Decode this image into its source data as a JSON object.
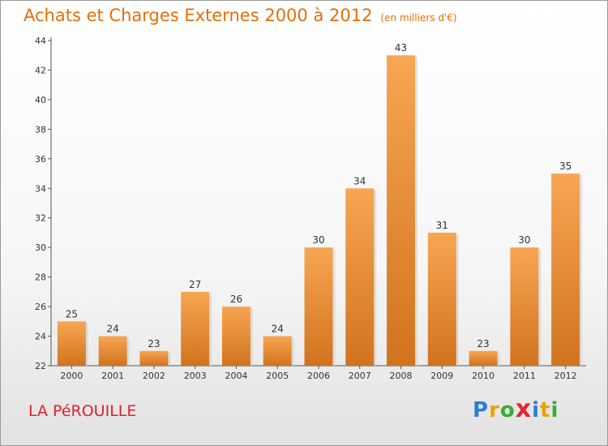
{
  "header": {
    "title": "Achats et Charges Externes 2000 à 2012",
    "subtitle": "(en milliers d'€)"
  },
  "footer": {
    "commune": "LA PéROUILLE",
    "logo_text": "Proxiti"
  },
  "colors": {
    "bar_light": "#f7a652",
    "bar_dark": "#d2731e",
    "title": "#e36f0b",
    "commune": "#e0202c"
  },
  "chart_data": {
    "type": "bar",
    "title": "Achats et Charges Externes 2000 à 2012",
    "subtitle": "(en milliers d'€)",
    "categories": [
      "2000",
      "2001",
      "2002",
      "2003",
      "2004",
      "2005",
      "2006",
      "2007",
      "2008",
      "2009",
      "2010",
      "2011",
      "2012"
    ],
    "values": [
      25,
      24,
      23,
      27,
      26,
      24,
      30,
      34,
      43,
      31,
      23,
      30,
      35
    ],
    "ylim": [
      22,
      44
    ],
    "yticks": [
      22,
      24,
      26,
      28,
      30,
      32,
      34,
      36,
      38,
      40,
      42,
      44
    ],
    "grid": false,
    "xlabel": "",
    "ylabel": ""
  }
}
